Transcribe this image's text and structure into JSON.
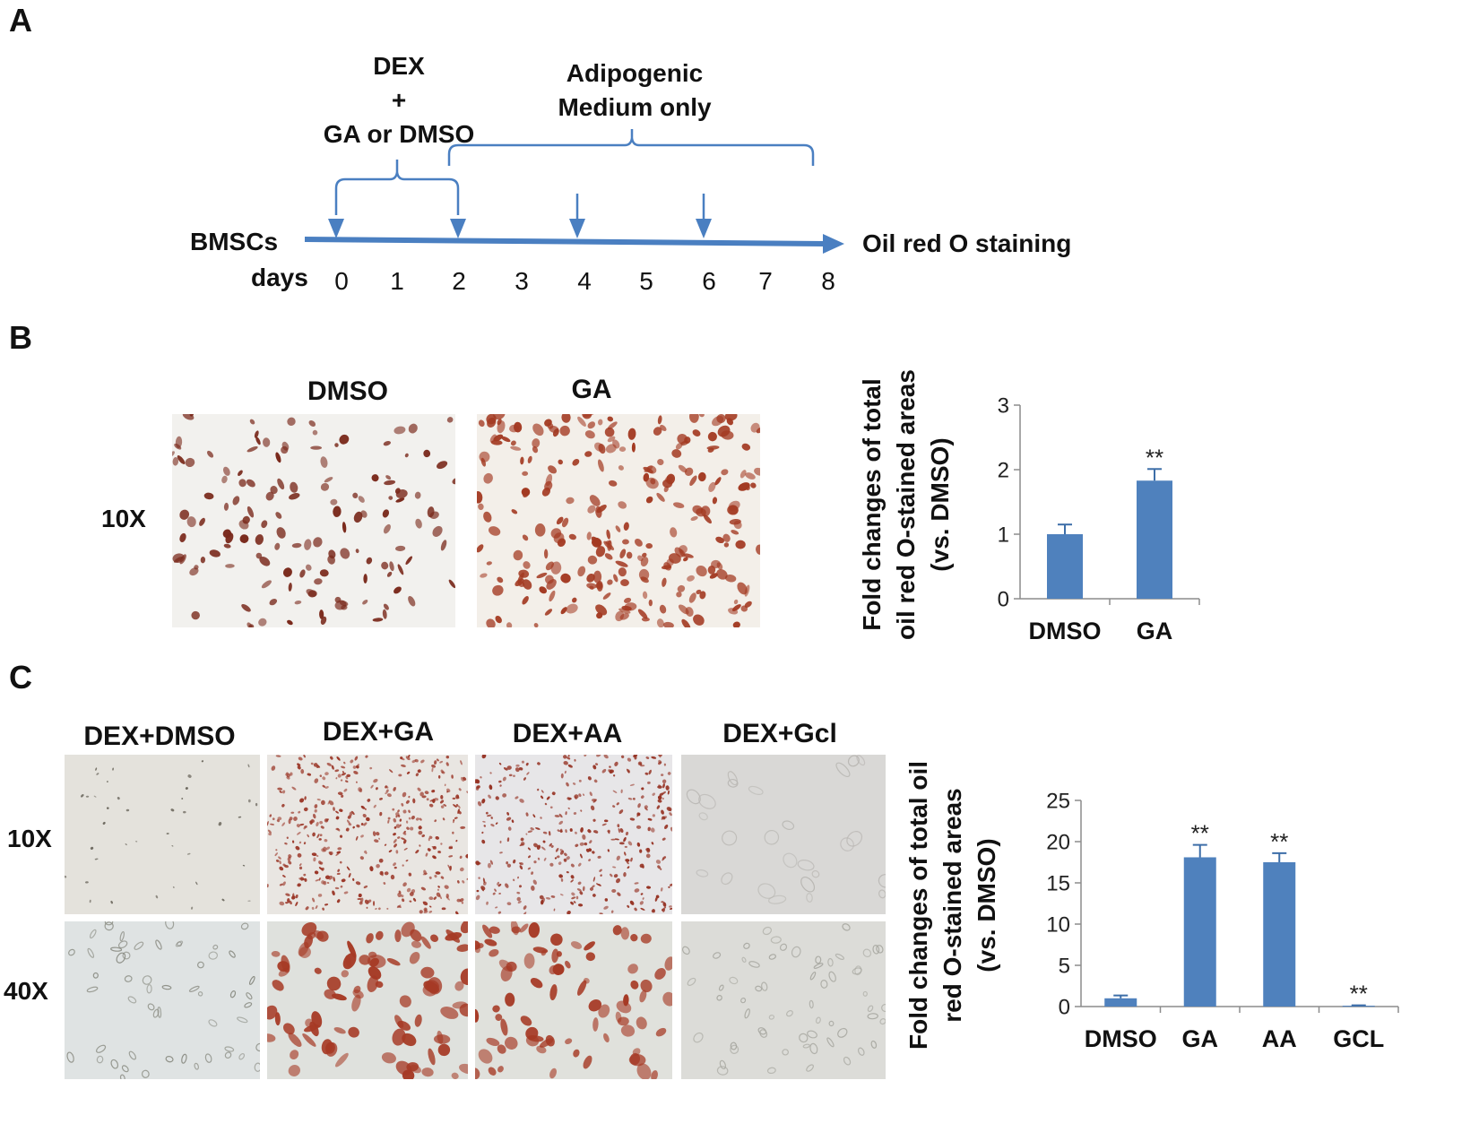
{
  "panels": {
    "a": "A",
    "b": "B",
    "c": "C"
  },
  "timeline": {
    "treatment_lines": [
      "DEX",
      "+",
      "GA or DMSO"
    ],
    "medium_lines": [
      "Adipogenic",
      "Medium only"
    ],
    "cells_label": "BMSCs",
    "days_label": "days",
    "days": [
      "0",
      "1",
      "2",
      "3",
      "4",
      "5",
      "6",
      "7",
      "8"
    ],
    "endpoint": "Oil red O staining",
    "line_color": "#4a7fc1"
  },
  "panel_b": {
    "col_labels": [
      "DMSO",
      "GA"
    ],
    "row_label": "10X"
  },
  "panel_c": {
    "col_labels": [
      "DEX+DMSO",
      "DEX+GA",
      "DEX+AA",
      "DEX+Gcl"
    ],
    "row_labels": [
      "10X",
      "40X"
    ]
  },
  "chart_data": [
    {
      "type": "bar",
      "categories": [
        "DMSO",
        "GA"
      ],
      "values": [
        1.0,
        1.83
      ],
      "errors": [
        0.15,
        0.18
      ],
      "significance": [
        "",
        "**"
      ],
      "ylabel_lines": [
        "Fold changes of total",
        "oil red O-stained areas",
        "(vs. DMSO)"
      ],
      "ylim": [
        0,
        3
      ],
      "yticks": [
        "0",
        "1",
        "2",
        "3"
      ],
      "bar_color": "#4f81bd"
    },
    {
      "type": "bar",
      "categories": [
        "DMSO",
        "GA",
        "AA",
        "GCL"
      ],
      "values": [
        1.0,
        18.1,
        17.5,
        0.1
      ],
      "errors": [
        0.35,
        1.5,
        1.1,
        0.05
      ],
      "significance": [
        "",
        "**",
        "**",
        "**"
      ],
      "ylabel_lines": [
        "Fold changes of total oil",
        "red O-stained areas",
        "(vs. DMSO)"
      ],
      "ylim": [
        0,
        25
      ],
      "yticks": [
        "0",
        "5",
        "10",
        "15",
        "20",
        "25"
      ],
      "bar_color": "#4f81bd"
    }
  ]
}
